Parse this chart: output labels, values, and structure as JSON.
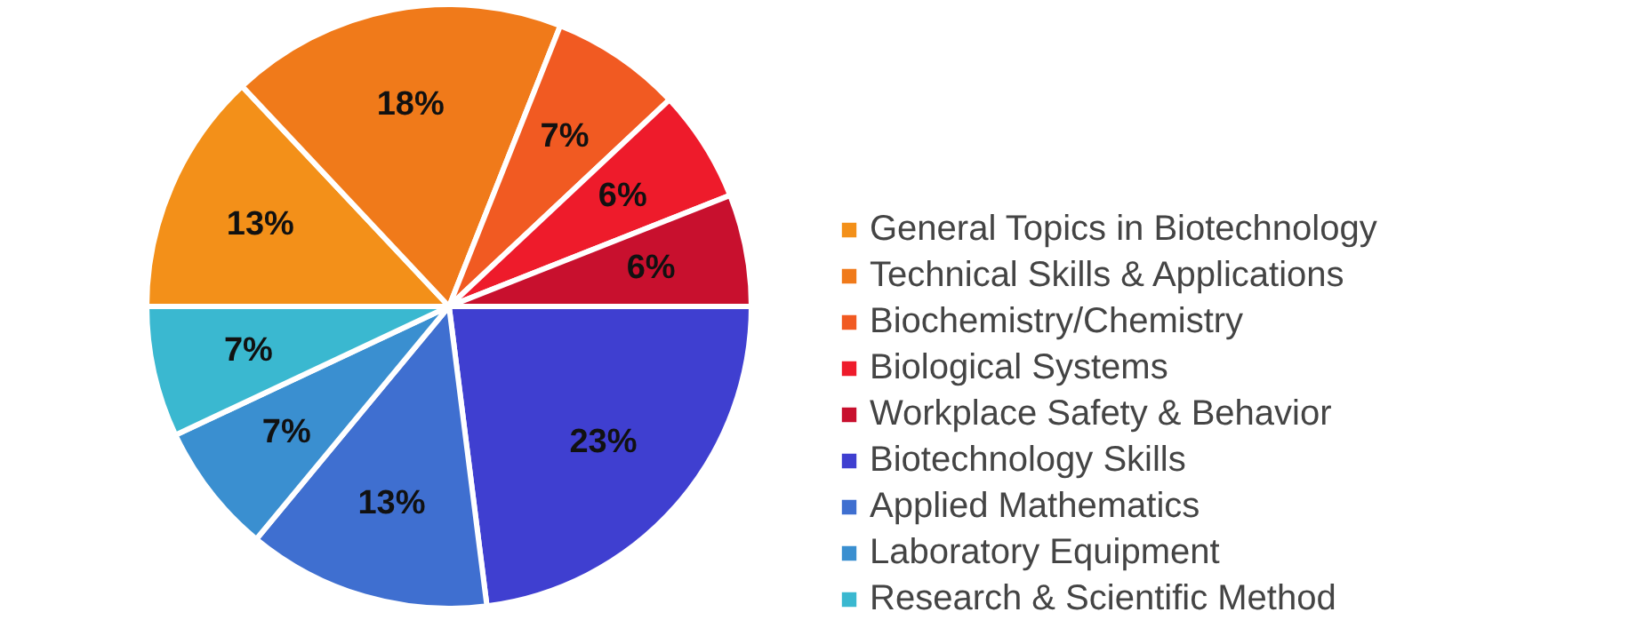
{
  "chart_data": {
    "type": "pie",
    "categories": [
      "General Topics in Biotechnology",
      "Technical Skills & Applications",
      "Biochemistry/Chemistry",
      "Biological Systems",
      "Workplace Safety & Behavior",
      "Biotechnology Skills",
      "Applied Mathematics",
      "Laboratory Equipment",
      "Research & Scientific Method"
    ],
    "values": [
      13,
      18,
      7,
      6,
      6,
      23,
      13,
      7,
      7
    ],
    "value_labels": [
      "13%",
      "18%",
      "7%",
      "6%",
      "6%",
      "23%",
      "13%",
      "7%",
      "7%"
    ],
    "colors": [
      "#f39019",
      "#f07a1a",
      "#f15a22",
      "#ee1b2b",
      "#c8102e",
      "#3f3fd0",
      "#3f6fd0",
      "#3a8fd0",
      "#3ab8d0"
    ],
    "legend": "right"
  }
}
